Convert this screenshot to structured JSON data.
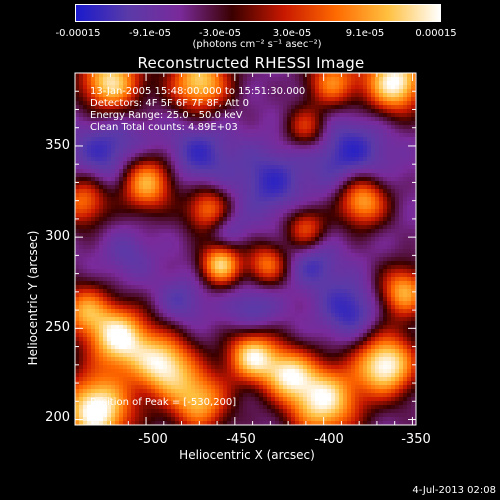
{
  "colorbar": {
    "ticks": [
      "-0.00015",
      "-9.1e-05",
      "-3.0e-05",
      "3.0e-05",
      "9.1e-05",
      "0.00015"
    ],
    "label": "(photons cm⁻² s⁻¹ asec⁻²)",
    "range": [
      -0.00015,
      0.00015
    ]
  },
  "chart_data": {
    "type": "heatmap",
    "title": "Reconstructed RHESSI Image",
    "xlabel": "Heliocentric X (arcsec)",
    "ylabel": "Heliocentric Y (arcsec)",
    "xlim": [
      -540,
      -348
    ],
    "ylim": [
      197,
      390
    ],
    "xticks": [
      -500,
      -450,
      -400,
      -350
    ],
    "yticks": [
      200,
      250,
      300,
      350
    ],
    "colormap": [
      "#1a1acc",
      "#5a3aa8",
      "#7a2a9a",
      "#3a0000",
      "#c81800",
      "#ff6a00",
      "#ffc040",
      "#ffffff"
    ],
    "peak": {
      "x": -530,
      "y": 200
    },
    "annotations": [
      "13-Jan-2005 15:48:00.000 to 15:51:30.000",
      "Detectors: 4F 5F 6F 7F 8F, Att 0",
      "Energy Range: 25.0 - 50.0 keV",
      "Clean     Total counts: 4.89E+03"
    ],
    "peak_label": "Position of Peak = [-530,200]",
    "blobs": [
      {
        "x": -528,
        "y": 205,
        "s": 14,
        "a": 1.0
      },
      {
        "x": -515,
        "y": 245,
        "s": 12,
        "a": 0.9
      },
      {
        "x": -490,
        "y": 230,
        "s": 12,
        "a": 0.85
      },
      {
        "x": -535,
        "y": 260,
        "s": 10,
        "a": 0.6
      },
      {
        "x": -470,
        "y": 210,
        "s": 12,
        "a": 0.7
      },
      {
        "x": -440,
        "y": 235,
        "s": 10,
        "a": 0.85
      },
      {
        "x": -420,
        "y": 225,
        "s": 10,
        "a": 0.7
      },
      {
        "x": -400,
        "y": 210,
        "s": 14,
        "a": 0.9
      },
      {
        "x": -365,
        "y": 230,
        "s": 12,
        "a": 0.95
      },
      {
        "x": -355,
        "y": 270,
        "s": 10,
        "a": 0.7
      },
      {
        "x": -500,
        "y": 330,
        "s": 11,
        "a": 0.8
      },
      {
        "x": -465,
        "y": 315,
        "s": 9,
        "a": 0.6
      },
      {
        "x": -458,
        "y": 285,
        "s": 8,
        "a": 0.8
      },
      {
        "x": -432,
        "y": 285,
        "s": 8,
        "a": 0.55
      },
      {
        "x": -410,
        "y": 305,
        "s": 8,
        "a": 0.5
      },
      {
        "x": -378,
        "y": 320,
        "s": 10,
        "a": 0.75
      },
      {
        "x": -360,
        "y": 385,
        "s": 12,
        "a": 0.95
      },
      {
        "x": -470,
        "y": 385,
        "s": 12,
        "a": 0.8
      },
      {
        "x": -520,
        "y": 385,
        "s": 12,
        "a": 0.85
      },
      {
        "x": -535,
        "y": 320,
        "s": 10,
        "a": 0.6
      },
      {
        "x": -410,
        "y": 360,
        "s": 8,
        "a": 0.45
      },
      {
        "x": -395,
        "y": 385,
        "s": 10,
        "a": 0.6
      }
    ],
    "voids": [
      {
        "x": -520,
        "y": 345,
        "s": 16,
        "a": 0.9
      },
      {
        "x": -470,
        "y": 345,
        "s": 14,
        "a": 0.8
      },
      {
        "x": -430,
        "y": 330,
        "s": 14,
        "a": 0.8
      },
      {
        "x": -385,
        "y": 345,
        "s": 16,
        "a": 0.9
      },
      {
        "x": -440,
        "y": 260,
        "s": 10,
        "a": 0.7
      },
      {
        "x": -480,
        "y": 265,
        "s": 10,
        "a": 0.6
      },
      {
        "x": -385,
        "y": 260,
        "s": 12,
        "a": 0.9
      },
      {
        "x": -405,
        "y": 285,
        "s": 10,
        "a": 0.7
      },
      {
        "x": -455,
        "y": 305,
        "s": 8,
        "a": 0.6
      },
      {
        "x": -510,
        "y": 290,
        "s": 10,
        "a": 0.5
      }
    ]
  },
  "timestamp": "4-Jul-2013 02:08"
}
